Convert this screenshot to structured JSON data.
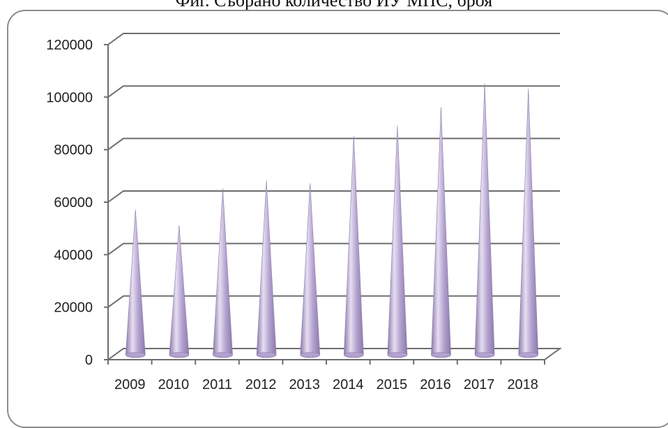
{
  "chart_data": {
    "type": "bar",
    "title": "Фиг. Събрано количество ИУ МПС, броя",
    "categories": [
      "2009",
      "2010",
      "2011",
      "2012",
      "2013",
      "2014",
      "2015",
      "2016",
      "2017",
      "2018"
    ],
    "series": [
      {
        "values": [
          54000,
          48000,
          62000,
          65000,
          64000,
          82000,
          86000,
          93000,
          102000,
          100000
        ]
      }
    ],
    "ylim": [
      0,
      120000
    ],
    "yticks": [
      "0",
      "20000",
      "40000",
      "60000",
      "80000",
      "100000",
      "120000"
    ],
    "xlabel": "",
    "ylabel": "",
    "grid": true,
    "legend": "none",
    "colors": {
      "bar": "#b3a2cf",
      "bar_dark": "#8c7aaa",
      "bar_light": "#e6def2",
      "gridline": "#6d6d6d",
      "frame": "#8c8c8c"
    }
  }
}
